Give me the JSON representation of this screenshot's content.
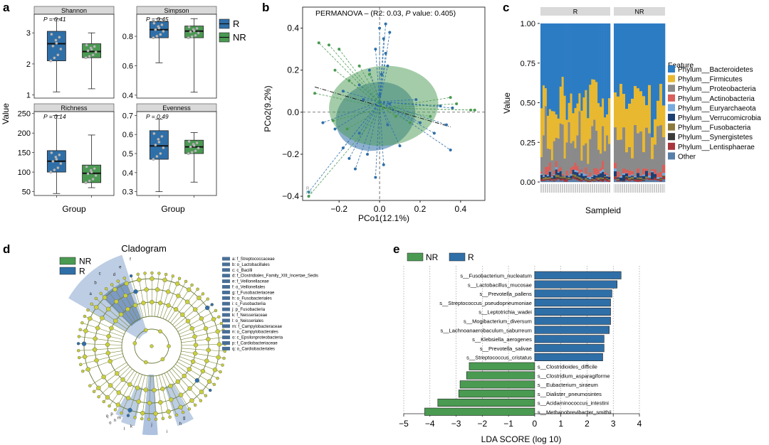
{
  "panel_labels": [
    "a",
    "b",
    "c",
    "d",
    "e"
  ],
  "colors": {
    "R": "#2f6fa8",
    "NR": "#4a9a52",
    "R_light": "#9bb4d6",
    "NR_light": "#9cc79a",
    "strip": "#d9d9d9"
  },
  "chart_data": [
    {
      "id": "a",
      "type": "boxplot",
      "ylabel": "Value",
      "xlabel": "Group",
      "legend": [
        {
          "name": "R",
          "color": "#2f6fa8"
        },
        {
          "name": "NR",
          "color": "#4a9a52"
        }
      ],
      "facets": [
        {
          "name": "Shannon",
          "p_label": "P = 0.41",
          "ylim": [
            0.9,
            3.6
          ],
          "ticks": [
            1,
            2,
            3
          ],
          "boxes": [
            {
              "group": "R",
              "min": 1.1,
              "q1": 2.1,
              "median": 2.65,
              "q3": 3.05,
              "max": 3.45
            },
            {
              "group": "NR",
              "min": 1.2,
              "q1": 2.2,
              "median": 2.4,
              "q3": 2.65,
              "max": 3.0
            }
          ]
        },
        {
          "name": "Simpson",
          "p_label": "P = 0.45",
          "ylim": [
            0.38,
            0.95
          ],
          "ticks": [
            0.4,
            0.6,
            0.8
          ],
          "boxes": [
            {
              "group": "R",
              "min": 0.62,
              "q1": 0.79,
              "median": 0.845,
              "q3": 0.9,
              "max": 0.92
            },
            {
              "group": "NR",
              "min": 0.42,
              "q1": 0.79,
              "median": 0.835,
              "q3": 0.87,
              "max": 0.92
            }
          ]
        },
        {
          "name": "Richness",
          "p_label": "P = 0.14",
          "ylim": [
            40,
            255
          ],
          "ticks": [
            50,
            100,
            150,
            200,
            250
          ],
          "boxes": [
            {
              "group": "R",
              "min": 45,
              "q1": 100,
              "median": 128,
              "q3": 155,
              "max": 245
            },
            {
              "group": "NR",
              "min": 60,
              "q1": 73,
              "median": 97,
              "q3": 118,
              "max": 195
            }
          ]
        },
        {
          "name": "Evenness",
          "p_label": "P = 0.49",
          "ylim": [
            0.28,
            0.72
          ],
          "ticks": [
            0.3,
            0.4,
            0.5,
            0.6,
            0.7
          ],
          "boxes": [
            {
              "group": "R",
              "min": 0.3,
              "q1": 0.47,
              "median": 0.54,
              "q3": 0.62,
              "max": 0.68
            },
            {
              "group": "NR",
              "min": 0.35,
              "q1": 0.5,
              "median": 0.535,
              "q3": 0.57,
              "max": 0.61
            }
          ]
        }
      ]
    },
    {
      "id": "b",
      "type": "scatter",
      "title_prefix": "PERMANOVA – (R2: 0.03, ",
      "title_italic": "P",
      "title_suffix": " value: 0.405)",
      "xlabel": "PCo1(12.1%)",
      "ylabel": "PCo2(9.2%)",
      "xlim": [
        -0.38,
        0.52
      ],
      "ylim": [
        -0.42,
        0.5
      ],
      "xticks": [
        -0.2,
        0.0,
        0.2,
        0.4
      ],
      "yticks": [
        -0.4,
        -0.2,
        0.0,
        0.2,
        0.4
      ],
      "legend": [
        "R",
        "NR"
      ],
      "centroids": {
        "R": [
          0.0,
          0.05
        ],
        "NR": [
          0.02,
          0.02
        ]
      },
      "series": [
        {
          "name": "R",
          "points": [
            [
              0.0,
              0.4
            ],
            [
              0.03,
              0.42
            ],
            [
              0.05,
              0.38
            ],
            [
              0.02,
              0.35
            ],
            [
              -0.02,
              0.3
            ],
            [
              0.03,
              0.28
            ],
            [
              -0.05,
              0.2
            ],
            [
              0.01,
              0.18
            ],
            [
              0.04,
              0.22
            ],
            [
              -0.1,
              0.13
            ],
            [
              0.0,
              0.08
            ],
            [
              -0.18,
              0.1
            ],
            [
              -0.08,
              0.06
            ],
            [
              0.05,
              0.04
            ],
            [
              0.18,
              0.06
            ],
            [
              0.3,
              0.03
            ],
            [
              0.36,
              0.02
            ],
            [
              0.33,
              -0.06
            ],
            [
              0.27,
              -0.1
            ],
            [
              0.35,
              -0.18
            ],
            [
              -0.35,
              -0.38
            ],
            [
              -0.22,
              -0.08
            ],
            [
              -0.28,
              -0.05
            ],
            [
              -0.18,
              -0.17
            ],
            [
              -0.15,
              -0.22
            ],
            [
              -0.12,
              -0.27
            ],
            [
              -0.06,
              -0.2
            ],
            [
              -0.02,
              -0.31
            ],
            [
              0.02,
              -0.25
            ],
            [
              0.1,
              -0.16
            ],
            [
              0.2,
              -0.05
            ],
            [
              0.04,
              -0.06
            ],
            [
              -0.1,
              -0.1
            ]
          ]
        },
        {
          "name": "NR",
          "points": [
            [
              -0.3,
              0.33
            ],
            [
              -0.25,
              0.32
            ],
            [
              -0.2,
              0.3
            ],
            [
              -0.22,
              0.2
            ],
            [
              -0.15,
              0.15
            ],
            [
              -0.1,
              0.22
            ],
            [
              -0.05,
              0.18
            ],
            [
              -0.32,
              0.09
            ],
            [
              0.35,
              0.07
            ],
            [
              0.38,
              0.04
            ],
            [
              0.45,
              0.01
            ],
            [
              0.47,
              0.01
            ],
            [
              0.25,
              -0.02
            ],
            [
              0.15,
              -0.05
            ],
            [
              0.08,
              -0.02
            ],
            [
              -0.23,
              -0.04
            ],
            [
              -0.16,
              -0.08
            ],
            [
              -0.35,
              -0.4
            ]
          ]
        }
      ],
      "ellipses": [
        {
          "name": "R",
          "cx": -0.02,
          "cy": -0.02,
          "rx": 0.2,
          "ry": 0.16,
          "rotation": -20
        },
        {
          "name": "NR",
          "cx": 0.02,
          "cy": 0.03,
          "rx": 0.27,
          "ry": 0.19,
          "rotation": -5
        }
      ]
    },
    {
      "id": "c",
      "type": "stacked-bar",
      "xlabel": "Sampleid",
      "ylabel": "Value",
      "facets": [
        "R",
        "NR"
      ],
      "n_samples": {
        "R": 33,
        "NR": 18
      },
      "yticks": [
        "0.00",
        "0.25",
        "0.50",
        "0.75",
        "1.00"
      ],
      "legend_title": "Feature",
      "features": [
        {
          "name": "Phylum__Bacteroidetes",
          "color": "#2c7cc4"
        },
        {
          "name": "Phylum__Firmicutes",
          "color": "#e8b830"
        },
        {
          "name": "Phylum__Proteobacteria",
          "color": "#8a8a8a"
        },
        {
          "name": "Phylum__Actinobacteria",
          "color": "#d85f5a"
        },
        {
          "name": "Phylum__Euryarchaeota",
          "color": "#75aade"
        },
        {
          "name": "Phylum__Verrucomicrobia",
          "color": "#1d3f72"
        },
        {
          "name": "Phylum__Fusobacteria",
          "color": "#8c7a3c"
        },
        {
          "name": "Phylum__Synergistetes",
          "color": "#3a3a3a"
        },
        {
          "name": "Phylum__Lentisphaerae",
          "color": "#a8353c"
        },
        {
          "name": "Other",
          "color": "#587fa8"
        }
      ]
    },
    {
      "id": "e",
      "type": "bar",
      "xlabel": "LDA SCORE (log 10)",
      "xlim": [
        -5,
        4
      ],
      "xticks": [
        -5,
        -4,
        -3,
        -2,
        -1,
        0,
        1,
        2,
        3,
        4
      ],
      "legend": [
        {
          "name": "NR",
          "color": "#4a9a52"
        },
        {
          "name": "R",
          "color": "#2f6fa8"
        }
      ],
      "bars": [
        {
          "label": "s__Fusobacterium_nucleatum",
          "value": 3.3,
          "group": "R"
        },
        {
          "label": "s__Lactobacillus_mucosae",
          "value": 3.15,
          "group": "R"
        },
        {
          "label": "s__Prevotella_pallens",
          "value": 2.95,
          "group": "R"
        },
        {
          "label": "s__Streptococcus_pseudopneumoniae",
          "value": 2.9,
          "group": "R"
        },
        {
          "label": "s__Leptotrichia_wadei",
          "value": 2.9,
          "group": "R"
        },
        {
          "label": "s__Mogibacterium_diversum",
          "value": 2.9,
          "group": "R"
        },
        {
          "label": "s__Lachnoanaerobaculum_saburreum",
          "value": 2.85,
          "group": "R"
        },
        {
          "label": "s__Klebsiella_aerogenes",
          "value": 2.65,
          "group": "R"
        },
        {
          "label": "s__Prevotella_salivae",
          "value": 2.65,
          "group": "R"
        },
        {
          "label": "s__Streptococcus_cristatus",
          "value": 2.6,
          "group": "R"
        },
        {
          "label": "s__Clostridioides_difficile",
          "value": -2.5,
          "group": "NR"
        },
        {
          "label": "s__Clostridium_asparagiforme",
          "value": -2.6,
          "group": "NR"
        },
        {
          "label": "s__Eubacterium_siraeum",
          "value": -2.85,
          "group": "NR"
        },
        {
          "label": "s__Dialister_pneumosintes",
          "value": -2.9,
          "group": "NR"
        },
        {
          "label": "s__Acidaminococcus_intestini",
          "value": -3.7,
          "group": "NR"
        },
        {
          "label": "s__Methanobrevibacter_smithii",
          "value": -4.2,
          "group": "NR"
        }
      ]
    }
  ],
  "cladogram": {
    "title": "Cladogram",
    "legend": [
      {
        "name": "NR",
        "color": "#4a9a52"
      },
      {
        "name": "R",
        "color": "#2f6fa8"
      }
    ],
    "key": [
      "a: f_Streptococcaceae",
      "b: o_Lactobacillales",
      "c: c_Bacilli",
      "d: f_Clostridiales_Family_XIII_Incertae_Sedis",
      "e: f_Veillonellaceae",
      "f: o_Veillonellales",
      "g: f_Fusobacteriaceae",
      "h: o_Fusobacteriales",
      "i: c_Fusobacteriia",
      "j: p_Fusobacteria",
      "k: f_Neisseriaceae",
      "l: o_Neisseriales",
      "m: f_Campylobacteraceae",
      "n: o_Campylobacterales",
      "o: c_Epsilonproteobacteria",
      "p: f_Cardiobacteriaceae",
      "q: o_Cardiobacteriales"
    ],
    "node_letters": [
      "a",
      "b",
      "c",
      "d",
      "e",
      "f",
      "g",
      "h",
      "i",
      "j",
      "k",
      "l",
      "m",
      "n",
      "o",
      "p",
      "q"
    ]
  }
}
